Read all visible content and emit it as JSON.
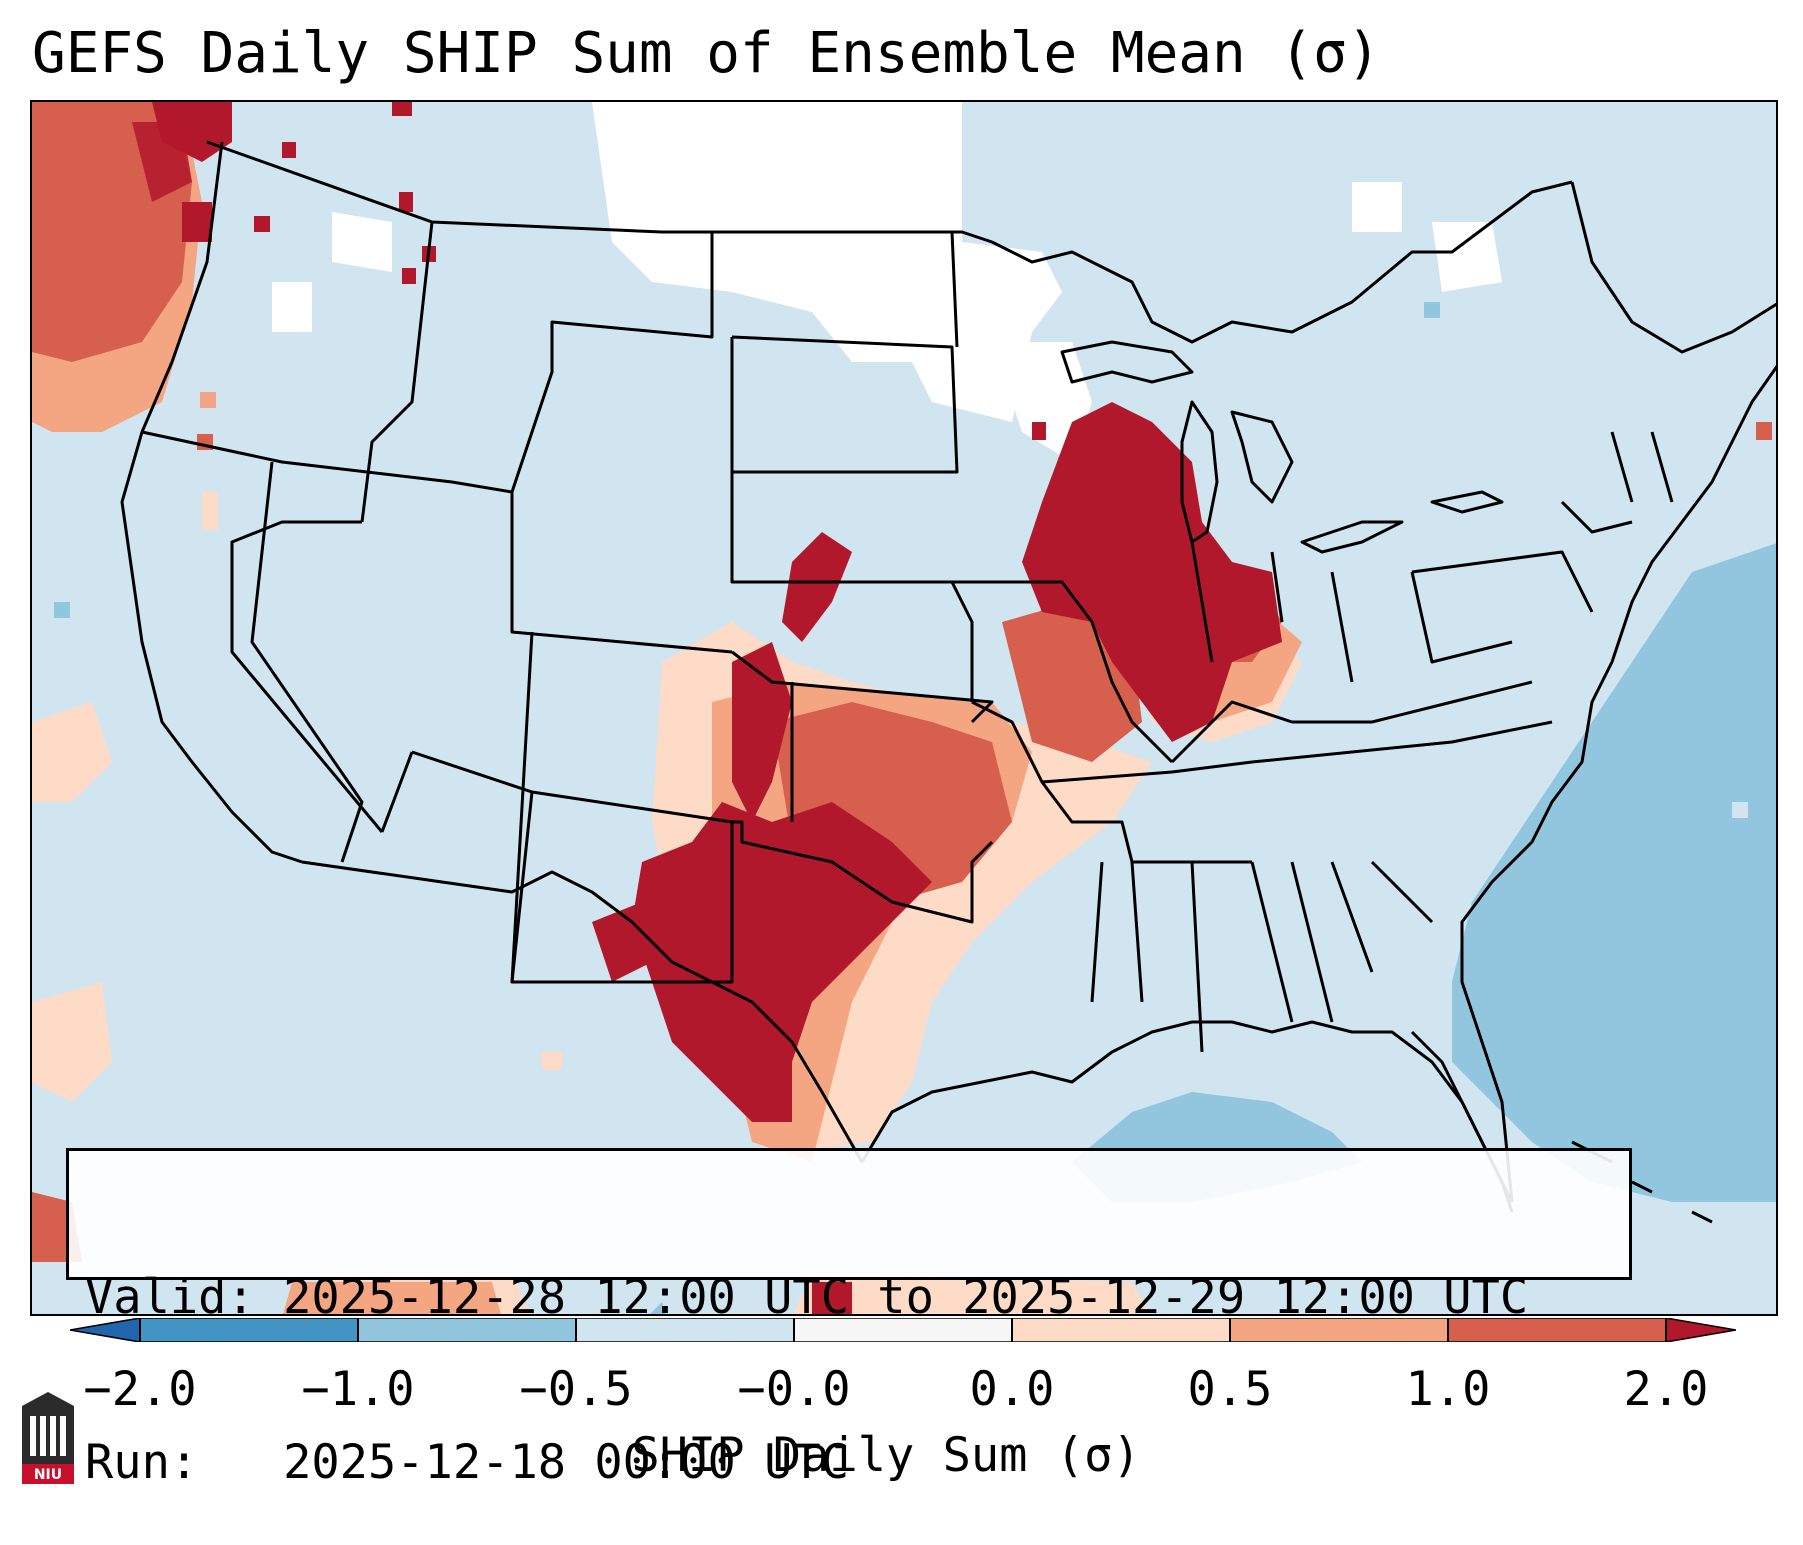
{
  "title": "GEFS Daily SHIP Sum of Ensemble Mean (σ)",
  "info": {
    "valid_line": "Valid: 2025-12-28 12:00 UTC to 2025-12-29 12:00 UTC",
    "run_line": "Run:   2025-12-18 00:00 UTC"
  },
  "colorbar": {
    "label": "SHIP Daily Sum (σ)",
    "ticks": [
      "−2.0",
      "−1.0",
      "−0.5",
      "−0.0",
      "0.0",
      "0.5",
      "1.0",
      "2.0"
    ],
    "colors": [
      "#4393c3",
      "#92c5de",
      "#d1e5f0",
      "#f7f7f7",
      "#fddbc7",
      "#f4a582",
      "#d6604d",
      "#b2182b"
    ],
    "extend": "both"
  },
  "map": {
    "region": "Continental United States",
    "field_description_colors": {
      "strong_positive": "#b2182b",
      "moderate_positive": "#d6604d",
      "weak_positive": "#f4a582",
      "slight_positive": "#fddbc7",
      "near_zero": "#ffffff",
      "slight_negative": "#d1e5f0",
      "negative": "#92c5de",
      "strong_negative": "#4393c3"
    }
  },
  "logo": {
    "text": "NIU"
  }
}
